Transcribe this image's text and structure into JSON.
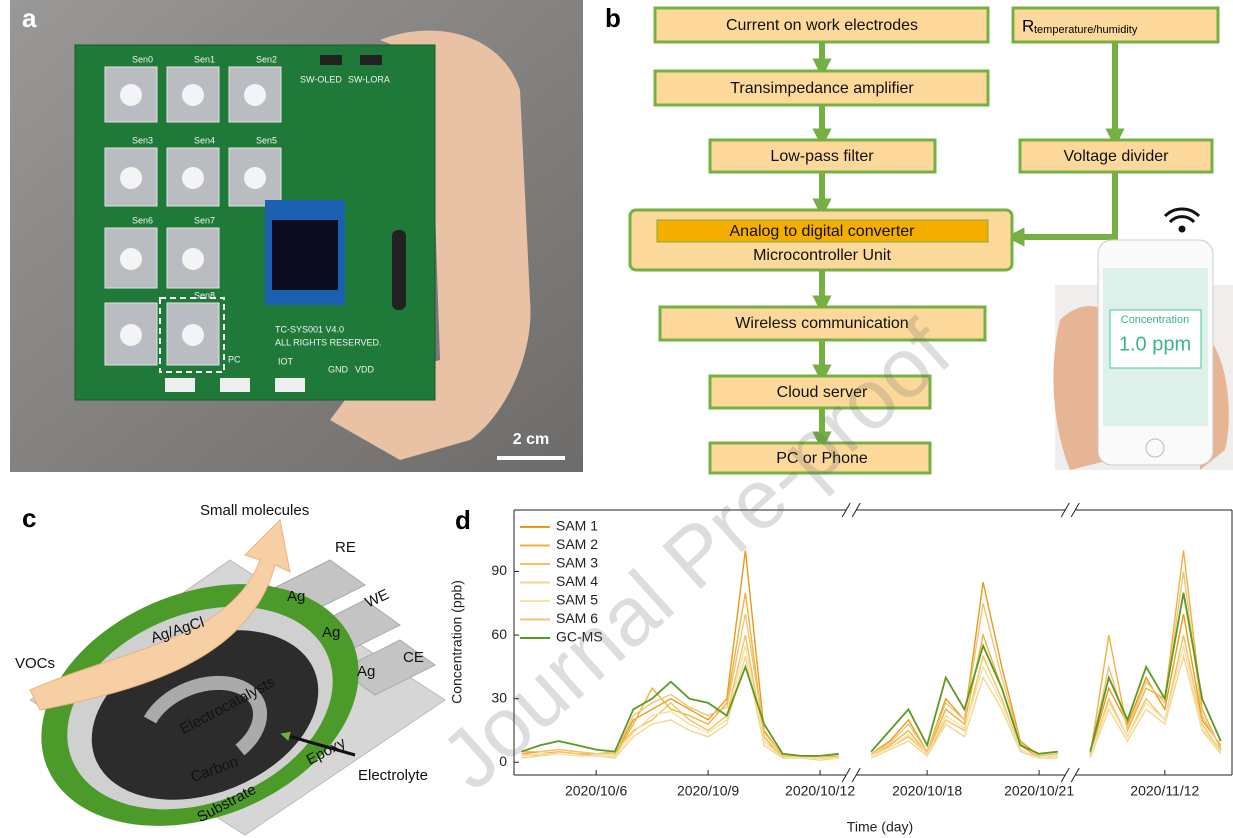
{
  "panel_labels": [
    "a",
    "b",
    "c",
    "d"
  ],
  "photo": {
    "sensor_labels": [
      "Sen0",
      "Sen1",
      "Sen2",
      "Sen3",
      "Sen4",
      "Sen5",
      "Sen6",
      "Sen7",
      "Sen8"
    ],
    "switches": [
      "SW-OLED",
      "SW-LORA"
    ],
    "board_text": [
      "TC-SYS001 V4.0",
      "ALL RIGHTS RESERVED."
    ],
    "ports": [
      "PC",
      "IOT"
    ],
    "pins": [
      "GND",
      "VDD"
    ],
    "scale_bar": "2 cm"
  },
  "flowchart": {
    "nodes": [
      "Current on work electrodes",
      "Transimpedance amplifier",
      "Low-pass filter",
      "Analog to digital converter",
      "Microcontroller Unit",
      "Wireless communication",
      "Cloud server",
      "PC or Phone",
      "Voltage divider"
    ],
    "sensor_label": "R",
    "sensor_subscript": "temperature/humidity"
  },
  "phone": {
    "title": "Concentration",
    "reading": "1.0 ppm"
  },
  "diagram": {
    "small_molecules": "Small molecules",
    "re": "RE",
    "we": "WE",
    "ce": "CE",
    "ag": [
      "Ag",
      "Ag",
      "Ag"
    ],
    "vocs": "VOCs",
    "ag_agcl": "Ag/AgCl",
    "electrocatalysts": "Electrocatalysts",
    "carbon": "Carbon",
    "epoxy": "Epoxy",
    "electrolyte": "Electrolyte",
    "substrate": "Substrate"
  },
  "watermark": "Journal Pre-proof",
  "chart_data": {
    "type": "line",
    "x_label": "Time (day)",
    "y_label": "Concentration (ppb)",
    "ylim": [
      -6,
      119
    ],
    "yticks": [
      0,
      30,
      60,
      90
    ],
    "segments": [
      {
        "xlim": [
          3.8,
          12.7
        ],
        "xticks": [
          {
            "value": 6,
            "label": "2020/10/6"
          },
          {
            "value": 9,
            "label": "2020/10/9"
          },
          {
            "value": 12,
            "label": "2020/10/12"
          }
        ]
      },
      {
        "xlim": [
          16.1,
          21.7
        ],
        "xticks": [
          {
            "value": 18,
            "label": "2020/10/18"
          },
          {
            "value": 21,
            "label": "2020/10/21"
          }
        ]
      },
      {
        "xlim": [
          40.6,
          44.8
        ],
        "xticks": [
          {
            "value": 43,
            "label": "2020/11/12"
          }
        ]
      }
    ],
    "x": [
      4,
      4.5,
      5,
      5.5,
      6,
      6.5,
      7,
      7.5,
      8,
      8.5,
      9,
      9.5,
      10,
      10.5,
      11,
      11.5,
      12,
      12.5,
      16.5,
      17,
      17.5,
      18,
      18.5,
      19,
      19.5,
      20,
      20.5,
      21,
      21.5,
      41,
      41.5,
      42,
      42.5,
      43,
      43.5,
      44,
      44.5
    ],
    "series": [
      {
        "name": "SAM 1",
        "color": "#e89a1a",
        "values": [
          4,
          5,
          6,
          5,
          4,
          4,
          20,
          25,
          30,
          25,
          20,
          30,
          100,
          15,
          3,
          3,
          2,
          3,
          4,
          10,
          20,
          5,
          30,
          20,
          85,
          45,
          10,
          3,
          4,
          4,
          35,
          18,
          40,
          25,
          70,
          20,
          8
        ]
      },
      {
        "name": "SAM 2",
        "color": "#f0b23a",
        "values": [
          3,
          4,
          5,
          4,
          3,
          3,
          18,
          35,
          25,
          22,
          18,
          28,
          80,
          12,
          2,
          2,
          2,
          2,
          3,
          8,
          15,
          4,
          25,
          18,
          60,
          35,
          8,
          2,
          3,
          3,
          60,
          15,
          35,
          30,
          100,
          25,
          6
        ]
      },
      {
        "name": "SAM 3",
        "color": "#f2c45e",
        "values": [
          4,
          3,
          5,
          4,
          4,
          5,
          15,
          20,
          28,
          20,
          15,
          22,
          60,
          10,
          3,
          3,
          2,
          2,
          3,
          7,
          12,
          4,
          20,
          15,
          50,
          30,
          6,
          2,
          3,
          3,
          30,
          12,
          30,
          20,
          60,
          18,
          5
        ]
      },
      {
        "name": "SAM 4",
        "color": "#f5d68e",
        "values": [
          2,
          3,
          4,
          3,
          3,
          2,
          12,
          18,
          20,
          15,
          12,
          18,
          50,
          8,
          2,
          2,
          1,
          2,
          2,
          6,
          10,
          3,
          18,
          12,
          40,
          25,
          5,
          2,
          2,
          2,
          25,
          10,
          25,
          18,
          50,
          15,
          4
        ]
      },
      {
        "name": "SAM 5",
        "color": "#f7e0a8",
        "values": [
          3,
          4,
          4,
          3,
          3,
          3,
          14,
          22,
          24,
          18,
          14,
          20,
          55,
          10,
          2,
          2,
          2,
          2,
          3,
          7,
          13,
          4,
          22,
          16,
          45,
          28,
          6,
          2,
          3,
          3,
          28,
          12,
          28,
          20,
          55,
          16,
          5
        ]
      },
      {
        "name": "SAM 6",
        "color": "#efc478",
        "values": [
          5,
          5,
          6,
          5,
          4,
          4,
          22,
          28,
          32,
          26,
          22,
          26,
          70,
          14,
          3,
          3,
          3,
          3,
          4,
          9,
          18,
          5,
          28,
          20,
          75,
          40,
          9,
          3,
          4,
          4,
          45,
          16,
          38,
          28,
          90,
          22,
          7
        ]
      },
      {
        "name": "GC-MS",
        "color": "#5a9a20",
        "values": [
          5,
          8,
          10,
          8,
          6,
          5,
          25,
          30,
          38,
          30,
          28,
          22,
          45,
          18,
          4,
          3,
          3,
          4,
          5,
          15,
          25,
          8,
          40,
          25,
          55,
          35,
          8,
          4,
          5,
          5,
          40,
          20,
          45,
          30,
          80,
          30,
          10
        ]
      }
    ],
    "grid": false
  }
}
